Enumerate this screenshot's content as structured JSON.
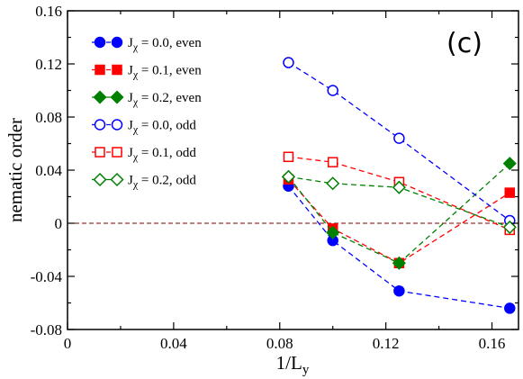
{
  "chart_data": {
    "type": "line",
    "panel_label": "(c)",
    "xlabel": "1/L",
    "xlabel_sub": "y",
    "ylabel": "nematic order",
    "xlim": [
      0,
      0.17
    ],
    "ylim": [
      -0.08,
      0.16
    ],
    "xticks": [
      0,
      0.04,
      0.08,
      0.12,
      0.16
    ],
    "xtick_labels": [
      "0",
      "0.04",
      "0.08",
      "0.12",
      "0.16"
    ],
    "yticks": [
      -0.08,
      -0.04,
      0,
      0.04,
      0.08,
      0.12,
      0.16
    ],
    "ytick_labels": [
      "-0.08",
      "-0.04",
      "0",
      "0.04",
      "0.08",
      "0.12",
      "0.16"
    ],
    "legend_position": "top-left",
    "zero_line": true,
    "colors": {
      "blue": "#0000ff",
      "red": "#ff0000",
      "green": "#008000",
      "zero_line": "#800000"
    },
    "x": [
      0.0833,
      0.1,
      0.125,
      0.1667
    ],
    "series": [
      {
        "name": "J_χ = 0.0, even",
        "legend_main": "J",
        "legend_sub": "χ",
        "legend_rest": " = 0.0, even",
        "color": "blue",
        "marker": "circle",
        "filled": true,
        "values": [
          0.028,
          -0.013,
          -0.051,
          -0.064
        ]
      },
      {
        "name": "J_χ = 0.1, even",
        "legend_main": "J",
        "legend_sub": "χ",
        "legend_rest": " = 0.1, even",
        "color": "red",
        "marker": "square",
        "filled": true,
        "values": [
          0.033,
          -0.004,
          -0.03,
          0.023
        ]
      },
      {
        "name": "J_χ = 0.2, even",
        "legend_main": "J",
        "legend_sub": "χ",
        "legend_rest": " = 0.2, even",
        "color": "green",
        "marker": "diamond",
        "filled": true,
        "values": [
          0.035,
          -0.007,
          -0.03,
          0.045
        ]
      },
      {
        "name": "J_χ = 0.0, odd",
        "legend_main": "J",
        "legend_sub": "χ",
        "legend_rest": " = 0.0, odd",
        "color": "blue",
        "marker": "circle",
        "filled": false,
        "values": [
          0.121,
          0.1,
          0.064,
          0.002
        ]
      },
      {
        "name": "J_χ = 0.1, odd",
        "legend_main": "J",
        "legend_sub": "χ",
        "legend_rest": " = 0.1, odd",
        "color": "red",
        "marker": "square",
        "filled": false,
        "values": [
          0.05,
          0.046,
          0.031,
          -0.005
        ]
      },
      {
        "name": "J_χ = 0.2, odd",
        "legend_main": "J",
        "legend_sub": "χ",
        "legend_rest": " = 0.2, odd",
        "color": "green",
        "marker": "diamond",
        "filled": false,
        "values": [
          0.035,
          0.03,
          0.027,
          -0.003
        ]
      }
    ]
  }
}
